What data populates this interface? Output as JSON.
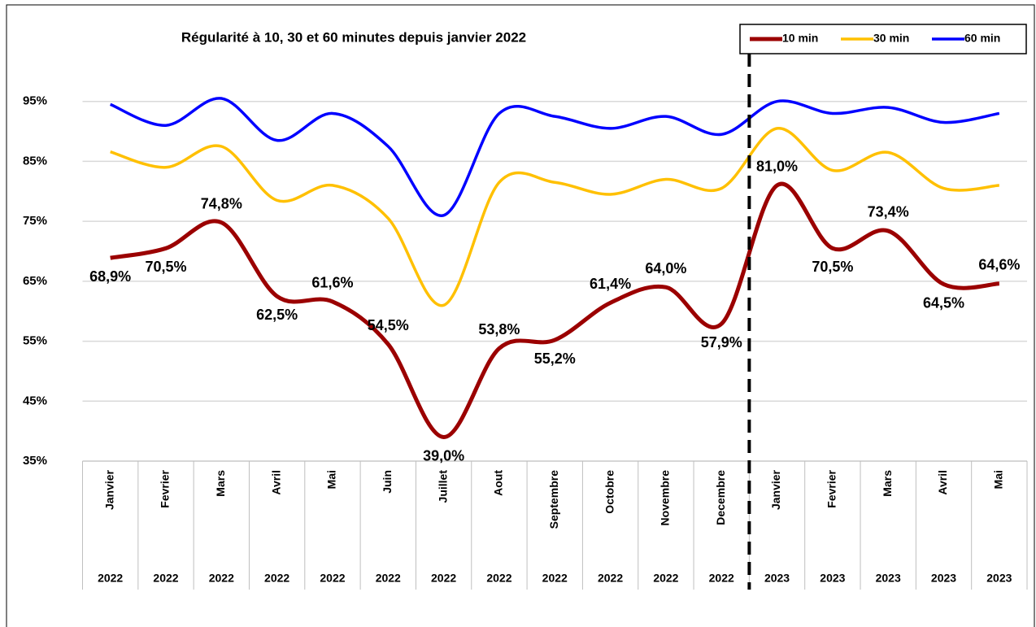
{
  "chart_data": {
    "type": "line",
    "title": "Régularité à 10, 30 et 60 minutes depuis janvier 2022",
    "categories": [
      "Janvier",
      "Fevrier",
      "Mars",
      "Avril",
      "Mai",
      "Juin",
      "Juillet",
      "Aout",
      "Septembre",
      "Octobre",
      "Novembre",
      "Decembre",
      "Janvier",
      "Fevrier",
      "Mars",
      "Avril",
      "Mai"
    ],
    "years": [
      "2022",
      "2022",
      "2022",
      "2022",
      "2022",
      "2022",
      "2022",
      "2022",
      "2022",
      "2022",
      "2022",
      "2022",
      "2023",
      "2023",
      "2023",
      "2023",
      "2023"
    ],
    "series": [
      {
        "name": "10 min",
        "color": "#9b0000",
        "values": [
          68.9,
          70.5,
          74.8,
          62.5,
          61.6,
          54.5,
          39.0,
          53.8,
          55.2,
          61.4,
          64.0,
          57.9,
          81.0,
          70.5,
          73.4,
          64.5,
          64.6
        ],
        "value_labels": [
          "68,9%",
          "70,5%",
          "74,8%",
          "62,5%",
          "61,6%",
          "54,5%",
          "39,0%",
          "53,8%",
          "55,2%",
          "61,4%",
          "64,0%",
          "57,9%",
          "81,0%",
          "70,5%",
          "73,4%",
          "64,5%",
          "64,6%"
        ]
      },
      {
        "name": "30 min",
        "color": "#ffc000",
        "values": [
          86.6,
          84,
          87.5,
          78.5,
          81,
          75.5,
          61,
          81.5,
          81.5,
          79.5,
          82,
          80.5,
          90.5,
          83.5,
          86.5,
          80.5,
          81
        ]
      },
      {
        "name": "60 min",
        "color": "#0000ff",
        "values": [
          94.5,
          91,
          95.5,
          88.5,
          93,
          87.5,
          76,
          93,
          92.5,
          90.5,
          92.5,
          89.5,
          95,
          93,
          94,
          91.5,
          93
        ]
      }
    ],
    "ylim": [
      35,
      105
    ],
    "yticks": [
      {
        "value": 35,
        "label": "35%"
      },
      {
        "value": 45,
        "label": "45%"
      },
      {
        "value": 55,
        "label": "55%"
      },
      {
        "value": 65,
        "label": "65%"
      },
      {
        "value": 75,
        "label": "75%"
      },
      {
        "value": 85,
        "label": "85%"
      },
      {
        "value": 95,
        "label": "95%"
      }
    ],
    "grid": true,
    "legend": "top-right"
  }
}
